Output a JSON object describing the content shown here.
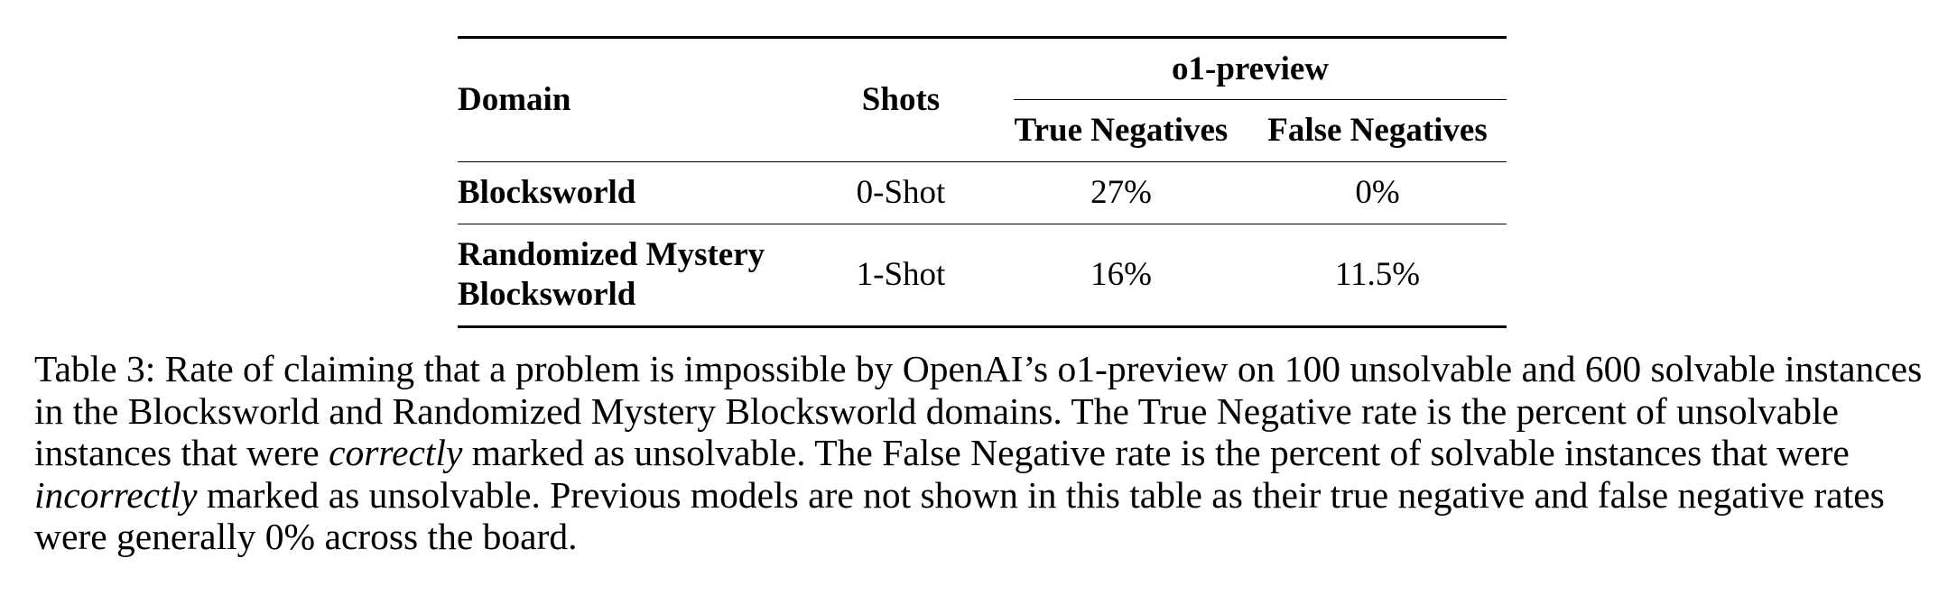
{
  "table": {
    "headers": {
      "domain": "Domain",
      "shots": "Shots",
      "group": "o1-preview",
      "true_negatives": "True Negatives",
      "false_negatives": "False Negatives"
    },
    "rows": [
      {
        "domain_lines": [
          "Blocksworld"
        ],
        "shots": "0-Shot",
        "true_negatives": "27%",
        "false_negatives": "0%"
      },
      {
        "domain_lines": [
          "Randomized Mystery",
          "Blocksworld"
        ],
        "shots": "1-Shot",
        "true_negatives": "16%",
        "false_negatives": "11.5%"
      }
    ]
  },
  "caption": {
    "part1": "Table 3: Rate of claiming that a problem is impossible by OpenAI’s o1-preview on 100 unsolvable and 600 solvable instances in the Blocksworld and Randomized Mystery Blocksworld domains. The True Negative rate is the percent of unsolvable instances that were ",
    "emph1": "correctly",
    "part2": " marked as unsolvable. The False Negative rate is the percent of solvable instances that were ",
    "emph2": "incorrectly",
    "part3": " marked as unsolvable. Previous models are not shown in this table as their true negative and false negative rates were generally 0% across the board."
  }
}
